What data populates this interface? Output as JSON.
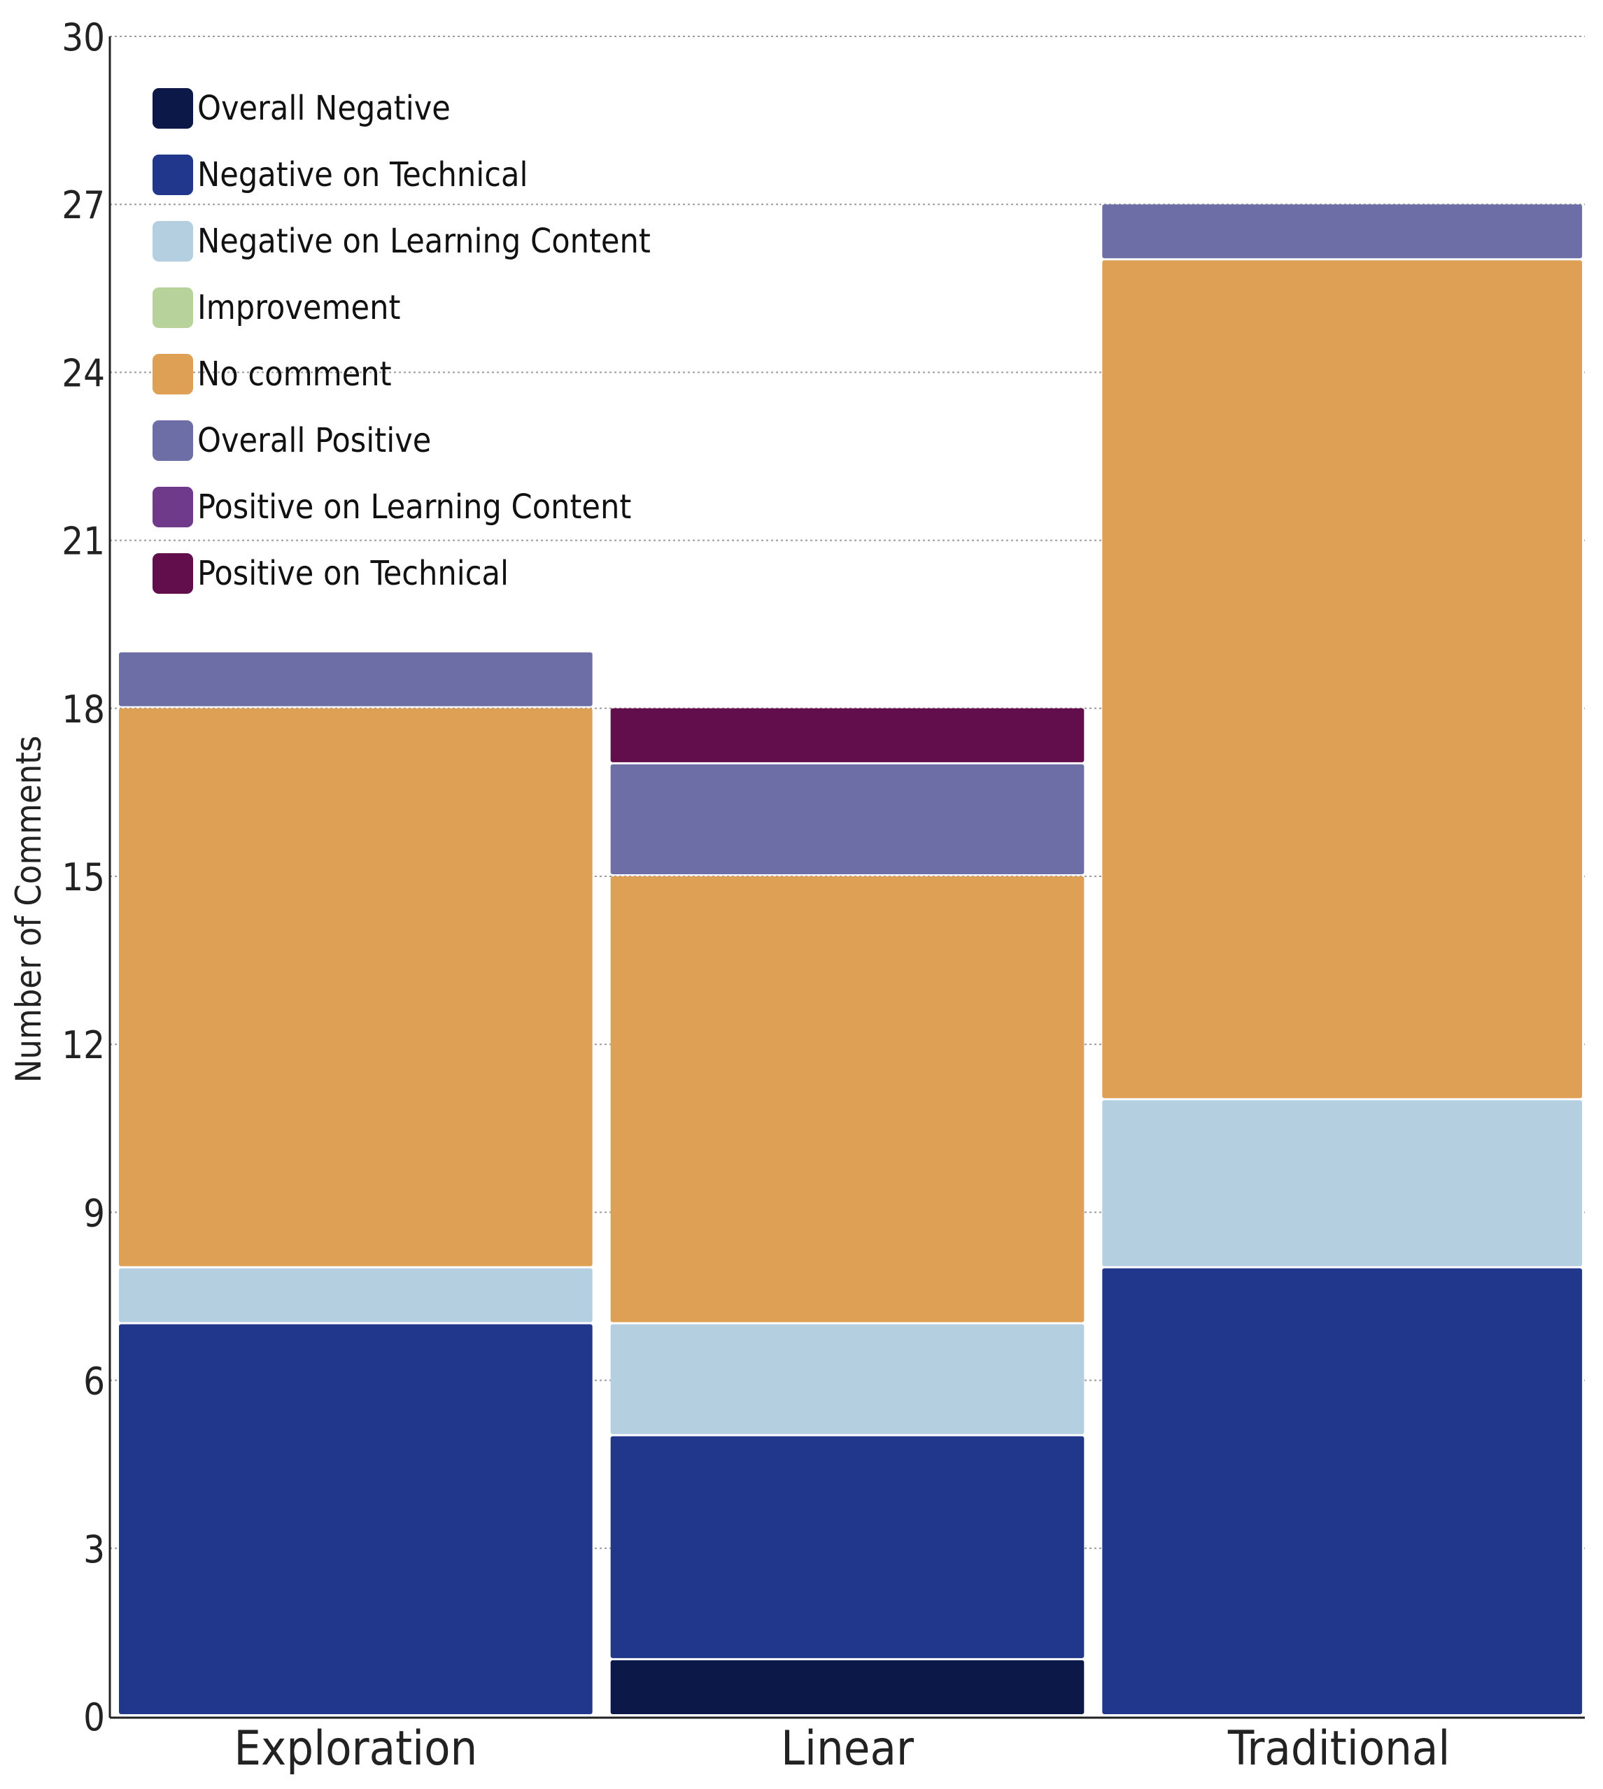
{
  "chart_data": {
    "type": "bar",
    "stacked": true,
    "title": "",
    "xlabel": "",
    "ylabel": "Number of Comments",
    "ylim": [
      0,
      30
    ],
    "yticks": [
      0,
      3,
      6,
      9,
      12,
      15,
      18,
      21,
      24,
      27,
      30
    ],
    "grid": "horizontal-dotted",
    "legend_position": "top-left",
    "categories": [
      "Exploration",
      "Linear",
      "Traditional"
    ],
    "series": [
      {
        "name": "Overall Negative",
        "color": "#0c1848",
        "values": [
          0,
          1,
          0
        ]
      },
      {
        "name": "Negative on Technical",
        "color": "#21378c",
        "values": [
          7,
          4,
          8
        ]
      },
      {
        "name": "Negative on Learning Content",
        "color": "#b4cfe0",
        "values": [
          1,
          2,
          3
        ]
      },
      {
        "name": "Improvement",
        "color": "#b8d29b",
        "values": [
          0,
          0,
          0
        ]
      },
      {
        "name": "No comment",
        "color": "#dda055",
        "values": [
          10,
          8,
          15
        ]
      },
      {
        "name": "Overall Positive",
        "color": "#6e6ea6",
        "values": [
          1,
          2,
          1
        ]
      },
      {
        "name": "Positive on Learning Content",
        "color": "#703a8a",
        "values": [
          0,
          0,
          0
        ]
      },
      {
        "name": "Positive on Technical",
        "color": "#620e4c",
        "values": [
          0,
          1,
          0
        ]
      }
    ]
  }
}
